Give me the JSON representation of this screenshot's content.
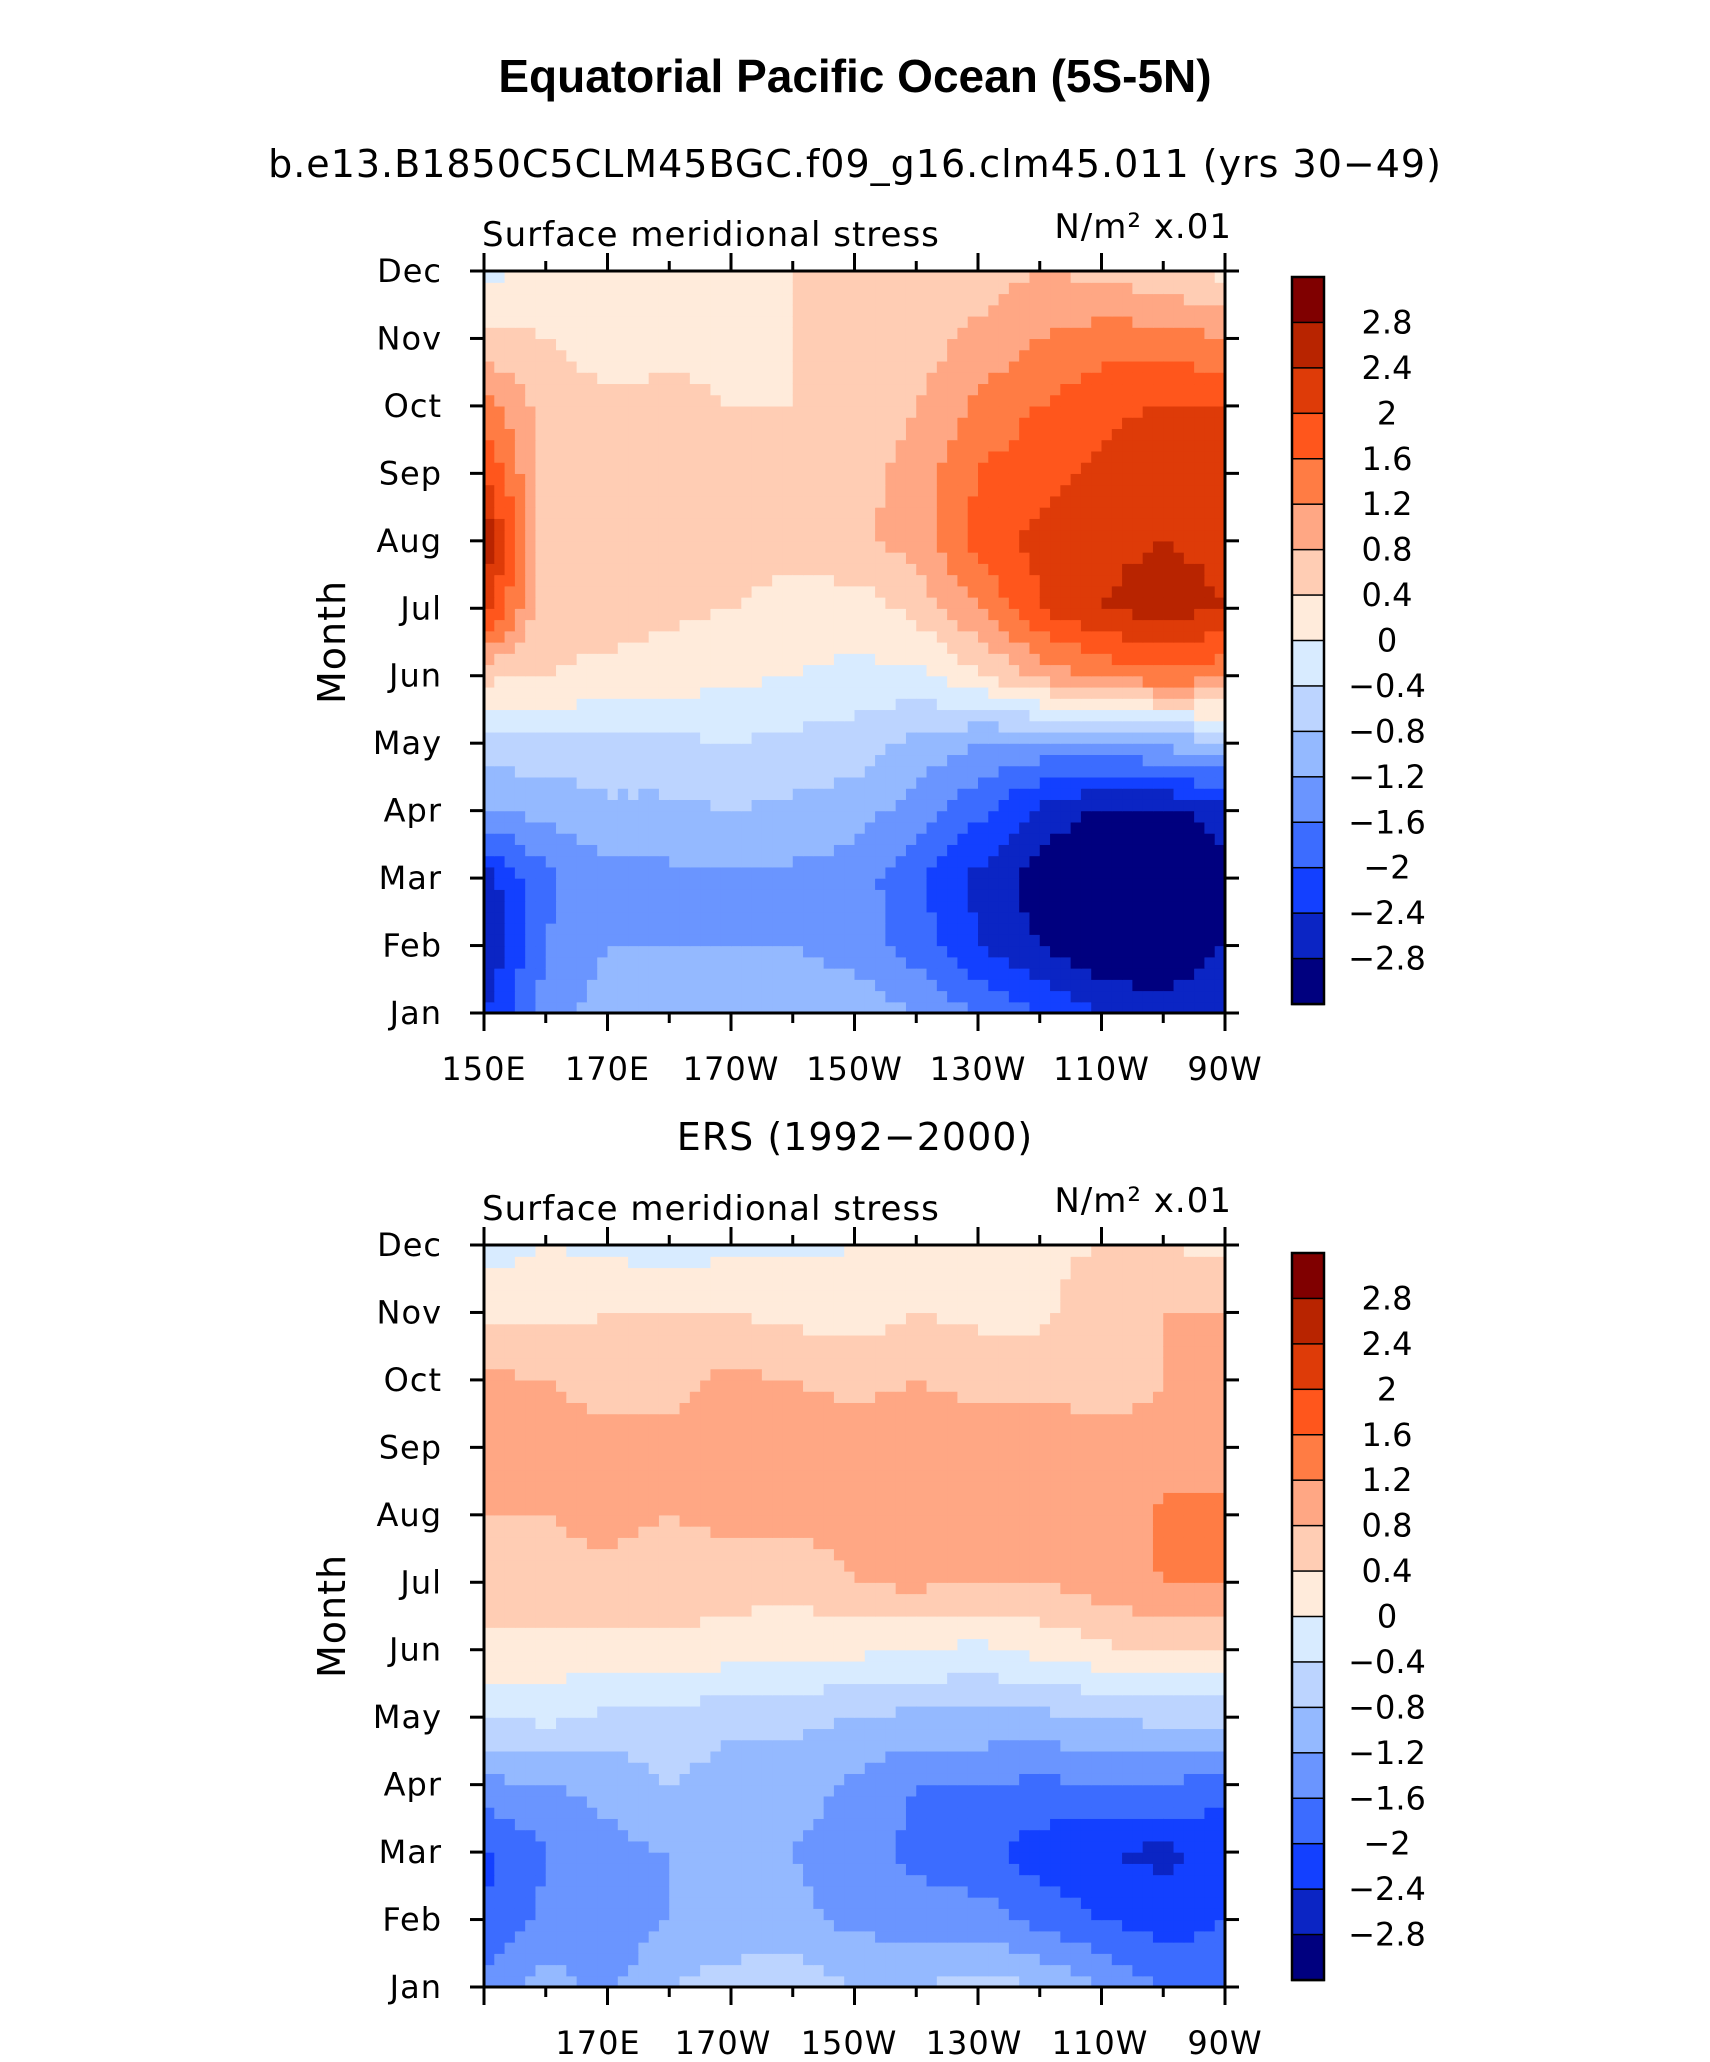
{
  "title": "Equatorial Pacific Ocean (5S-5N)",
  "colorbar": {
    "labels": [
      "2.8",
      "2.4",
      "2",
      "1.6",
      "1.2",
      "0.8",
      "0.4",
      "0",
      "−0.4",
      "−0.8",
      "−1.2",
      "−1.6",
      "−2",
      "−2.4",
      "−2.8"
    ],
    "colors": [
      "#800000",
      "#b82400",
      "#de3b08",
      "#ff561c",
      "#ff7c44",
      "#ffa784",
      "#ffcdb4",
      "#ffebdb",
      "#d8ebff",
      "#bcd4ff",
      "#94b9ff",
      "#6a95ff",
      "#3c6cff",
      "#1340ff",
      "#0b25c4",
      "#00007f"
    ]
  },
  "panels": [
    {
      "subtitle": "b.e13.B1850C5CLM45BGC.f09_g16.clm45.011 (yrs 30−49)",
      "variable_label": "Surface meridional stress",
      "units_label": "N/m² x.01",
      "ylabel": "Month",
      "x_tick_labels": [
        "150E",
        "170E",
        "170W",
        "150W",
        "130W",
        "110W",
        "90W"
      ]
    },
    {
      "subtitle": "ERS (1992−2000)",
      "variable_label": "Surface meridional stress",
      "units_label": "N/m² x.01",
      "ylabel": "Month",
      "x_tick_labels": [
        "",
        "170E",
        "170W",
        "150W",
        "130W",
        "110W",
        "90W"
      ]
    }
  ],
  "chart_data": [
    {
      "type": "heatmap",
      "title": "b.e13.B1850C5CLM45BGC.f09_g16.clm45.011 (yrs 30−49)",
      "variable": "Surface meridional stress",
      "units": "N/m² x.01",
      "ylabel": "Month",
      "x": [
        "150E",
        "160E",
        "170E",
        "180",
        "170W",
        "160W",
        "150W",
        "140W",
        "130W",
        "120W",
        "110W",
        "100W",
        "90W"
      ],
      "y": [
        "Jan",
        "Feb",
        "Mar",
        "Apr",
        "May",
        "Jun",
        "Jul",
        "Aug",
        "Sep",
        "Oct",
        "Nov",
        "Dec"
      ],
      "z": [
        [
          -2.4,
          -1.4,
          -1.0,
          -0.9,
          -0.9,
          -0.8,
          -0.9,
          -1.2,
          -1.6,
          -2.0,
          -2.4,
          -2.6,
          -2.4
        ],
        [
          -2.8,
          -1.6,
          -1.2,
          -1.2,
          -1.2,
          -1.2,
          -1.4,
          -1.8,
          -2.4,
          -2.8,
          -3.2,
          -3.2,
          -2.8
        ],
        [
          -2.6,
          -1.7,
          -1.3,
          -1.3,
          -1.3,
          -1.3,
          -1.4,
          -1.9,
          -2.5,
          -3.0,
          -3.4,
          -3.4,
          -3.0
        ],
        [
          -1.2,
          -1.1,
          -0.9,
          -0.9,
          -0.8,
          -0.9,
          -1.0,
          -1.4,
          -1.9,
          -2.5,
          -2.9,
          -2.9,
          -2.6
        ],
        [
          -0.6,
          -0.5,
          -0.5,
          -0.5,
          -0.4,
          -0.5,
          -0.6,
          -0.9,
          -1.2,
          -1.3,
          -1.3,
          -1.1,
          -0.9
        ],
        [
          0.5,
          0.4,
          0.3,
          0.2,
          0.1,
          0.0,
          -0.1,
          -0.1,
          0.3,
          0.9,
          1.3,
          1.5,
          1.3
        ],
        [
          2.2,
          0.5,
          0.6,
          0.5,
          0.4,
          0.3,
          0.2,
          0.5,
          1.2,
          2.0,
          2.4,
          2.6,
          2.4
        ],
        [
          2.8,
          0.6,
          0.6,
          0.6,
          0.5,
          0.5,
          0.7,
          1.0,
          1.8,
          2.1,
          2.3,
          2.4,
          2.3
        ],
        [
          2.0,
          0.6,
          0.5,
          0.5,
          0.5,
          0.5,
          0.6,
          1.0,
          1.6,
          1.9,
          2.1,
          2.4,
          2.4
        ],
        [
          1.4,
          0.6,
          0.5,
          0.5,
          0.4,
          0.4,
          0.5,
          0.8,
          1.3,
          1.6,
          1.9,
          2.0,
          2.0
        ],
        [
          0.5,
          0.4,
          0.2,
          0.3,
          0.3,
          0.4,
          0.5,
          0.6,
          0.9,
          1.2,
          1.4,
          1.4,
          1.2
        ],
        [
          -0.2,
          0.3,
          0.2,
          0.2,
          0.3,
          0.4,
          0.4,
          0.5,
          0.6,
          0.8,
          0.7,
          0.5,
          0.3
        ]
      ]
    },
    {
      "type": "heatmap",
      "title": "ERS (1992−2000)",
      "variable": "Surface meridional stress",
      "units": "N/m² x.01",
      "ylabel": "Month",
      "x": [
        "150E",
        "160E",
        "170E",
        "180",
        "170W",
        "160W",
        "150W",
        "140W",
        "130W",
        "120W",
        "110W",
        "100W",
        "90W"
      ],
      "y": [
        "Jan",
        "Feb",
        "Mar",
        "Apr",
        "May",
        "Jun",
        "Jul",
        "Aug",
        "Sep",
        "Oct",
        "Nov",
        "Dec"
      ],
      "z": [
        [
          -1.4,
          -1.0,
          -1.3,
          -0.8,
          -0.6,
          -0.5,
          -0.8,
          -0.8,
          -0.6,
          -0.8,
          -1.2,
          -1.6,
          -1.8
        ],
        [
          -2.0,
          -1.5,
          -1.5,
          -1.2,
          -1.1,
          -1.1,
          -1.3,
          -1.4,
          -1.4,
          -1.7,
          -2.0,
          -2.2,
          -2.0
        ],
        [
          -2.1,
          -1.6,
          -1.3,
          -1.2,
          -1.2,
          -1.2,
          -1.4,
          -1.7,
          -1.9,
          -2.2,
          -2.4,
          -2.5,
          -2.3
        ],
        [
          -1.3,
          -1.2,
          -1.1,
          -0.8,
          -1.0,
          -1.0,
          -1.3,
          -1.6,
          -1.6,
          -1.7,
          -1.6,
          -1.6,
          -1.8
        ],
        [
          -0.4,
          -0.3,
          -0.5,
          -0.5,
          -0.7,
          -0.7,
          -0.8,
          -0.9,
          -0.9,
          -0.9,
          -0.8,
          -0.7,
          -0.7
        ],
        [
          0.3,
          0.3,
          0.2,
          0.3,
          0.2,
          0.1,
          0.1,
          0.0,
          -0.1,
          0.1,
          0.3,
          0.5,
          0.5
        ],
        [
          0.6,
          0.7,
          0.7,
          0.6,
          0.6,
          0.5,
          0.8,
          0.9,
          0.8,
          0.8,
          1.0,
          1.2,
          1.2
        ],
        [
          0.8,
          0.8,
          0.9,
          0.8,
          0.9,
          0.9,
          1.0,
          1.0,
          1.0,
          0.8,
          0.9,
          1.3,
          1.3
        ],
        [
          1.2,
          1.0,
          1.0,
          0.9,
          1.0,
          1.0,
          1.0,
          1.1,
          1.0,
          1.0,
          1.0,
          0.9,
          1.0
        ],
        [
          0.9,
          0.8,
          0.6,
          0.7,
          0.9,
          0.8,
          0.7,
          0.8,
          0.7,
          0.7,
          0.6,
          0.8,
          1.2
        ],
        [
          0.3,
          0.3,
          0.4,
          0.4,
          0.4,
          0.3,
          0.2,
          0.4,
          0.3,
          0.3,
          0.7,
          0.8,
          0.8
        ],
        [
          -0.2,
          0.0,
          -0.1,
          -0.2,
          -0.1,
          -0.1,
          0.0,
          0.1,
          0.2,
          0.3,
          0.4,
          0.4,
          0.3
        ]
      ]
    }
  ]
}
